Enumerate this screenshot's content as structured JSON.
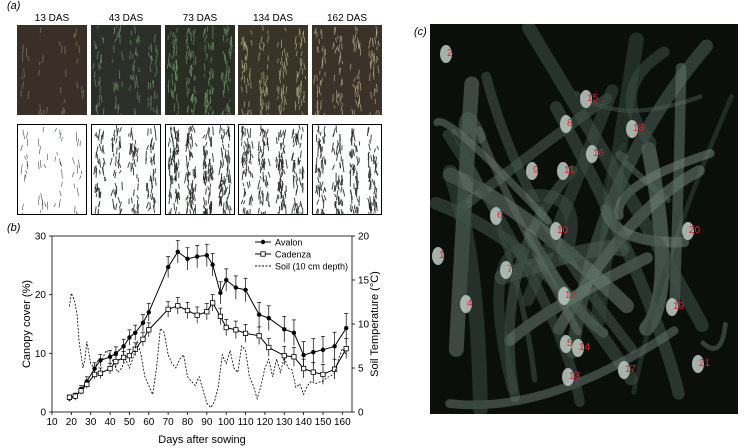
{
  "panels": {
    "a": "(a)",
    "b": "(b)",
    "c": "(c)"
  },
  "das_labels": [
    "13 DAS",
    "43 DAS",
    "73 DAS",
    "134 DAS",
    "162 DAS"
  ],
  "field_colors": [
    "#3a2f28",
    "#2c2e2a",
    "#2a2d24",
    "#3a3428",
    "#3b3329"
  ],
  "chart_data": {
    "type": "line",
    "xlabel": "Days after sowing",
    "ylabel": "Canopy cover (%)",
    "y2label": "Soil Temperature (°C)",
    "xlim": [
      10,
      165
    ],
    "ylim": [
      0,
      30
    ],
    "y2lim": [
      0,
      20
    ],
    "xticks": [
      10,
      20,
      30,
      40,
      50,
      60,
      70,
      80,
      90,
      100,
      110,
      120,
      130,
      140,
      150,
      160
    ],
    "yticks": [
      0,
      10,
      20,
      30
    ],
    "y2ticks": [
      0,
      5,
      10,
      15,
      20
    ],
    "legend_position": "top-right",
    "series": [
      {
        "name": "Avalon",
        "marker": "circle",
        "x": [
          19,
          22,
          25,
          28,
          32,
          35,
          40,
          43,
          47,
          50,
          53,
          57,
          60,
          70,
          75,
          80,
          85,
          90,
          93,
          97,
          100,
          105,
          110,
          117,
          122,
          130,
          135,
          140,
          145,
          150,
          156,
          162
        ],
        "y": [
          2.3,
          2.6,
          3.8,
          5.2,
          7.4,
          8.8,
          9.4,
          10.0,
          11.2,
          12.7,
          13.5,
          15.2,
          17.0,
          24.7,
          27.3,
          26.1,
          26.5,
          26.7,
          25.1,
          20.3,
          22.5,
          21.2,
          20.8,
          16.6,
          16.0,
          14.1,
          13.5,
          9.7,
          10.2,
          10.6,
          11.2,
          14.3
        ],
        "err": [
          0.5,
          0.6,
          0.7,
          0.8,
          1.0,
          1.0,
          1.1,
          1.1,
          1.2,
          1.3,
          1.3,
          1.4,
          1.5,
          1.8,
          1.9,
          1.9,
          1.9,
          1.9,
          1.9,
          1.9,
          1.9,
          2.0,
          2.0,
          2.1,
          2.1,
          2.2,
          2.2,
          2.3,
          2.3,
          2.3,
          2.4,
          2.5
        ]
      },
      {
        "name": "Cadenza",
        "marker": "square",
        "x": [
          19,
          22,
          25,
          28,
          32,
          35,
          40,
          43,
          47,
          50,
          53,
          57,
          60,
          70,
          75,
          80,
          85,
          90,
          93,
          97,
          100,
          105,
          110,
          117,
          122,
          130,
          135,
          140,
          145,
          150,
          156,
          162
        ],
        "y": [
          2.5,
          2.7,
          3.6,
          4.7,
          6.4,
          6.6,
          7.4,
          8.6,
          9.3,
          9.6,
          10.7,
          12.4,
          14.0,
          17.5,
          18.1,
          17.3,
          16.5,
          17.1,
          18.6,
          16.3,
          14.4,
          14.0,
          13.4,
          13.0,
          11.0,
          9.6,
          9.4,
          7.4,
          6.8,
          6.4,
          7.3,
          10.8
        ],
        "err": [
          0.4,
          0.5,
          0.6,
          0.7,
          0.8,
          0.9,
          0.9,
          1.0,
          1.0,
          1.1,
          1.1,
          1.2,
          1.2,
          1.3,
          1.4,
          1.4,
          1.4,
          1.4,
          1.4,
          1.4,
          1.4,
          1.5,
          1.5,
          1.5,
          1.5,
          1.6,
          1.6,
          1.6,
          1.6,
          1.7,
          1.7,
          1.7
        ]
      },
      {
        "name": "Soil (10 cm depth)",
        "marker": "none",
        "axis": "y2",
        "x": [
          19,
          20,
          21,
          22,
          23,
          24,
          25,
          26,
          27,
          28,
          30,
          32,
          34,
          36,
          38,
          40,
          42,
          44,
          46,
          48,
          50,
          52,
          54,
          56,
          58,
          60,
          62,
          64,
          66,
          68,
          70,
          72,
          74,
          76,
          78,
          80,
          82,
          84,
          86,
          88,
          90,
          92,
          94,
          96,
          98,
          100,
          102,
          104,
          106,
          108,
          110,
          112,
          114,
          116,
          118,
          120,
          122,
          124,
          126,
          128,
          130,
          132,
          134,
          136,
          138,
          140,
          142,
          144,
          146,
          148,
          150,
          152,
          154,
          156,
          158,
          160,
          162
        ],
        "y": [
          12.0,
          13.5,
          13.0,
          12.2,
          11.0,
          8.0,
          6.5,
          5.0,
          6.0,
          8.0,
          5.5,
          5.0,
          6.0,
          6.0,
          7.0,
          6.5,
          5.5,
          4.5,
          5.0,
          6.0,
          5.0,
          6.2,
          8.0,
          6.5,
          4.0,
          3.0,
          2.0,
          5.0,
          9.5,
          9.0,
          6.5,
          5.5,
          5.0,
          6.0,
          6.5,
          4.0,
          3.5,
          3.0,
          4.0,
          2.5,
          1.0,
          0.5,
          1.2,
          3.0,
          6.5,
          5.5,
          7.0,
          5.0,
          4.5,
          7.5,
          7.0,
          4.0,
          3.0,
          1.5,
          3.0,
          5.0,
          6.0,
          4.0,
          6.0,
          4.5,
          6.2,
          5.0,
          4.8,
          2.8,
          3.2,
          2.0,
          3.0,
          3.5,
          3.2,
          3.4,
          3.5,
          3.9,
          4.1,
          4.4,
          6.0,
          7.2,
          6.5
        ]
      }
    ]
  },
  "spikes": [
    "1",
    "2",
    "3",
    "4",
    "5",
    "6",
    "7",
    "8",
    "9",
    "10",
    "11",
    "12",
    "13",
    "14",
    "15",
    "16",
    "17",
    "18",
    "19",
    "20",
    "21"
  ]
}
